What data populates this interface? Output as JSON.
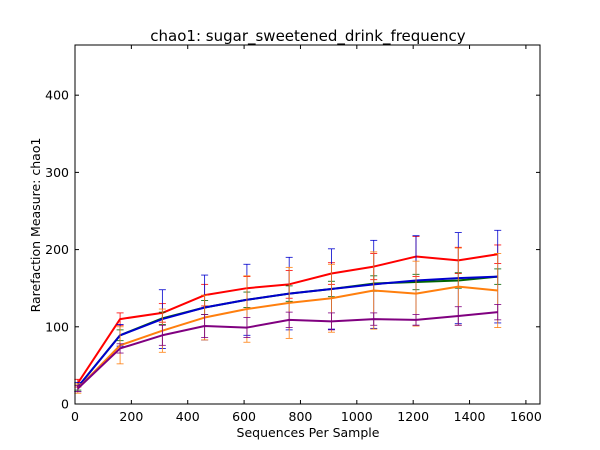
{
  "chart_data": {
    "type": "line",
    "title": "chao1: sugar_sweetened_drink_frequency",
    "xlabel": "Sequences Per Sample",
    "ylabel": "Rarefaction Measure: chao1",
    "xlim": [
      0,
      1650
    ],
    "ylim": [
      0,
      465
    ],
    "xticks": [
      0,
      200,
      400,
      600,
      800,
      1000,
      1200,
      1400,
      1600
    ],
    "yticks": [
      0,
      100,
      200,
      300,
      400
    ],
    "grid": false,
    "legend": "none",
    "x": [
      10,
      160,
      310,
      460,
      610,
      760,
      910,
      1060,
      1210,
      1360,
      1500
    ],
    "series": [
      {
        "color": "#ff0000",
        "values": [
          27,
          110,
          118,
          141,
          150,
          155,
          169,
          178,
          191,
          186,
          194
        ],
        "errors": [
          5,
          8,
          12,
          14,
          15,
          18,
          14,
          17,
          26,
          17,
          12
        ]
      },
      {
        "color": "#006400",
        "values": [
          22,
          89,
          111,
          125,
          135,
          143,
          149,
          156,
          158,
          160,
          165
        ],
        "errors": [
          4,
          7,
          8,
          9,
          10,
          10,
          10,
          10,
          10,
          10,
          10
        ]
      },
      {
        "color": "#0000cd",
        "values": [
          22,
          89,
          110,
          125,
          135,
          143,
          149,
          155,
          160,
          163,
          165
        ],
        "errors": [
          6,
          14,
          38,
          42,
          46,
          47,
          52,
          57,
          58,
          59,
          60
        ]
      },
      {
        "color": "#ff7f0e",
        "values": [
          20,
          76,
          95,
          112,
          123,
          131,
          137,
          147,
          143,
          152,
          147
        ],
        "errors": [
          6,
          24,
          28,
          29,
          43,
          46,
          44,
          50,
          42,
          50,
          48
        ]
      },
      {
        "color": "#800080",
        "values": [
          20,
          72,
          89,
          101,
          99,
          109,
          107,
          110,
          109,
          114,
          119
        ],
        "errors": [
          4,
          6,
          13,
          15,
          13,
          10,
          11,
          8,
          7,
          12,
          10
        ]
      }
    ]
  }
}
